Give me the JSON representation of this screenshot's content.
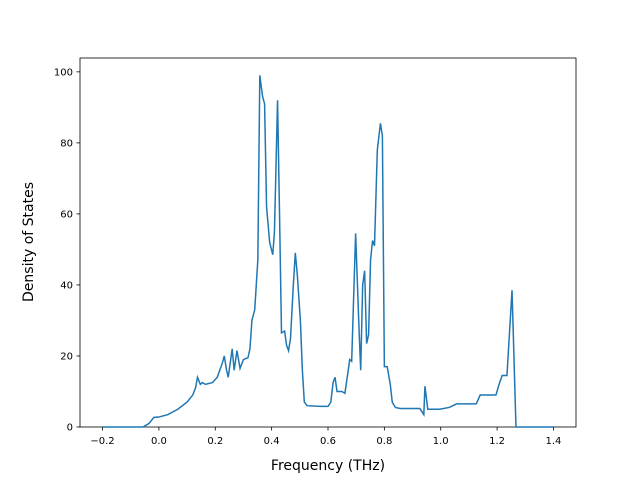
{
  "chart_data": {
    "type": "line",
    "x_label": "Frequency (THz)",
    "y_label": "Density of States",
    "x": [
      -0.2,
      -0.056,
      -0.035,
      -0.018,
      0,
      0.032,
      0.067,
      0.1,
      0.12,
      0.13,
      0.137,
      0.147,
      0.154,
      0.165,
      0.19,
      0.207,
      0.225,
      0.232,
      0.24,
      0.246,
      0.26,
      0.267,
      0.277,
      0.288,
      0.3,
      0.316,
      0.323,
      0.33,
      0.34,
      0.351,
      0.358,
      0.368,
      0.375,
      0.382,
      0.393,
      0.404,
      0.41,
      0.421,
      0.428,
      0.435,
      0.446,
      0.453,
      0.46,
      0.467,
      0.477,
      0.484,
      0.491,
      0.502,
      0.509,
      0.516,
      0.526,
      0.575,
      0.6,
      0.61,
      0.618,
      0.625,
      0.632,
      0.649,
      0.66,
      0.67,
      0.677,
      0.684,
      0.698,
      0.709,
      0.716,
      0.723,
      0.73,
      0.737,
      0.744,
      0.751,
      0.758,
      0.765,
      0.775,
      0.786,
      0.793,
      0.8,
      0.81,
      0.821,
      0.828,
      0.839,
      0.856,
      0.926,
      0.94,
      0.944,
      0.954,
      0.996,
      1.03,
      1.056,
      1.126,
      1.14,
      1.196,
      1.207,
      1.218,
      1.235,
      1.253,
      1.267,
      1.4
    ],
    "series": [
      {
        "color": "#1f77b4",
        "values": [
          0,
          0,
          1,
          2.7,
          2.8,
          3.5,
          5,
          7,
          9,
          11,
          14,
          12,
          12.5,
          12,
          12.5,
          14,
          18,
          20,
          16,
          14,
          22,
          16,
          21.5,
          16.5,
          19,
          19.5,
          22,
          30,
          33,
          47,
          99,
          93,
          91,
          62,
          52,
          48.5,
          55,
          92,
          60,
          26.5,
          27,
          23,
          21.5,
          25,
          40,
          49,
          43,
          30,
          16,
          7,
          6,
          5.8,
          5.8,
          7,
          12.5,
          14,
          10,
          10,
          9.5,
          15,
          19,
          18.5,
          54.5,
          30,
          16,
          40,
          44,
          23.5,
          26,
          47,
          52.5,
          51,
          78,
          85.5,
          82,
          17,
          17,
          12,
          7,
          5.5,
          5.2,
          5.2,
          3.5,
          11.5,
          5,
          5,
          5.5,
          6.5,
          6.5,
          9,
          9,
          12,
          14.5,
          14.5,
          38.5,
          0,
          0
        ]
      }
    ],
    "xlim": [
      -0.28,
      1.48
    ],
    "ylim": [
      0,
      103.9
    ],
    "xticks": [
      {
        "value": -0.2,
        "label": "−0.2"
      },
      {
        "value": 0,
        "label": "0.0"
      },
      {
        "value": 0.2,
        "label": "0.2"
      },
      {
        "value": 0.4,
        "label": "0.4"
      },
      {
        "value": 0.6,
        "label": "0.6"
      },
      {
        "value": 0.8,
        "label": "0.8"
      },
      {
        "value": 1.0,
        "label": "1.0"
      },
      {
        "value": 1.2,
        "label": "1.2"
      },
      {
        "value": 1.4,
        "label": "1.4"
      }
    ],
    "yticks": [
      0,
      20,
      40,
      60,
      80,
      100
    ]
  }
}
